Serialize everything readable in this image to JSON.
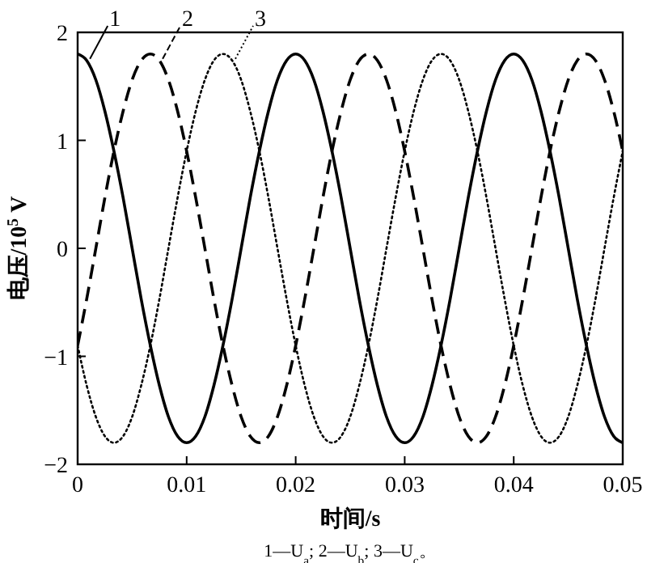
{
  "chart_data": {
    "type": "line",
    "xlabel": "时间/s",
    "ylabel": "电压/10$^{5}$ V",
    "annotations": [
      "1—U$_{a}$; 2—U$_{b}$; 3—U$_{c}$。"
    ],
    "x": [
      0,
      0.00083,
      0.00167,
      0.0025,
      0.00333,
      0.00417,
      0.005,
      0.00583,
      0.00667,
      0.0075,
      0.00833,
      0.00917,
      0.01,
      0.01083,
      0.01167,
      0.0125,
      0.01333,
      0.01417,
      0.015,
      0.01583,
      0.01667,
      0.0175,
      0.01833,
      0.01917,
      0.02,
      0.02083,
      0.02167,
      0.0225,
      0.02333,
      0.02417,
      0.025,
      0.02583,
      0.02667,
      0.0275,
      0.02833,
      0.02917,
      0.03,
      0.03083,
      0.03167,
      0.0325,
      0.03333,
      0.03417,
      0.035,
      0.03583,
      0.03667,
      0.0375,
      0.03833,
      0.03917,
      0.04,
      0.04083,
      0.04167,
      0.0425,
      0.04333,
      0.04417,
      0.045,
      0.04583,
      0.04667,
      0.0475,
      0.04833,
      0.04917,
      0.05
    ],
    "series": [
      {
        "name": "1",
        "color": "#000000",
        "line_style": "solid",
        "values": [
          1.8,
          1.74,
          1.56,
          1.27,
          0.9,
          0.47,
          0,
          -0.47,
          -0.9,
          -1.27,
          -1.56,
          -1.74,
          -1.8,
          -1.74,
          -1.56,
          -1.27,
          -0.9,
          -0.47,
          0,
          0.47,
          0.9,
          1.27,
          1.56,
          1.74,
          1.8,
          1.74,
          1.56,
          1.27,
          0.9,
          0.47,
          0,
          -0.47,
          -0.9,
          -1.27,
          -1.56,
          -1.74,
          -1.8,
          -1.74,
          -1.56,
          -1.27,
          -0.9,
          -0.47,
          0,
          0.47,
          0.9,
          1.27,
          1.56,
          1.74,
          1.8,
          1.74,
          1.56,
          1.27,
          0.9,
          0.47,
          0,
          -0.47,
          -0.9,
          -1.27,
          -1.56,
          -1.74,
          -1.8
        ]
      },
      {
        "name": "2",
        "color": "#000000",
        "line_style": "dashed",
        "values": [
          -0.9,
          -0.47,
          0,
          0.47,
          0.9,
          1.27,
          1.56,
          1.74,
          1.8,
          1.74,
          1.56,
          1.27,
          0.9,
          0.47,
          0,
          -0.47,
          -0.9,
          -1.27,
          -1.56,
          -1.74,
          -1.8,
          -1.74,
          -1.56,
          -1.27,
          -0.9,
          -0.47,
          0,
          0.47,
          0.9,
          1.27,
          1.56,
          1.74,
          1.8,
          1.74,
          1.56,
          1.27,
          0.9,
          0.47,
          0,
          -0.47,
          -0.9,
          -1.27,
          -1.56,
          -1.74,
          -1.8,
          -1.74,
          -1.56,
          -1.27,
          -0.9,
          -0.47,
          0,
          0.47,
          0.9,
          1.27,
          1.56,
          1.74,
          1.8,
          1.74,
          1.56,
          1.27,
          0.9
        ]
      },
      {
        "name": "3",
        "color": "#000000",
        "line_style": "dotted",
        "values": [
          -0.9,
          -1.27,
          -1.56,
          -1.74,
          -1.8,
          -1.74,
          -1.56,
          -1.27,
          -0.9,
          -0.47,
          0,
          0.47,
          0.9,
          1.27,
          1.56,
          1.74,
          1.8,
          1.74,
          1.56,
          1.27,
          0.9,
          0.47,
          0,
          -0.47,
          -0.9,
          -1.27,
          -1.56,
          -1.74,
          -1.8,
          -1.74,
          -1.56,
          -1.27,
          -0.9,
          -0.47,
          0,
          0.47,
          0.9,
          1.27,
          1.56,
          1.74,
          1.8,
          1.74,
          1.56,
          1.27,
          0.9,
          0.47,
          0,
          -0.47,
          -0.9,
          -1.27,
          -1.56,
          -1.74,
          -1.8,
          -1.74,
          -1.56,
          -1.27,
          -0.9,
          -0.47,
          0,
          0.47,
          0.9
        ]
      }
    ],
    "xlim": [
      0,
      0.05
    ],
    "xticks": [
      0,
      0.01,
      0.02,
      0.03,
      0.04,
      0.05
    ],
    "ylim": [
      -2,
      2
    ],
    "yticks": [
      -2,
      -1,
      0,
      1,
      2
    ],
    "grid": false,
    "legend": "top left"
  }
}
